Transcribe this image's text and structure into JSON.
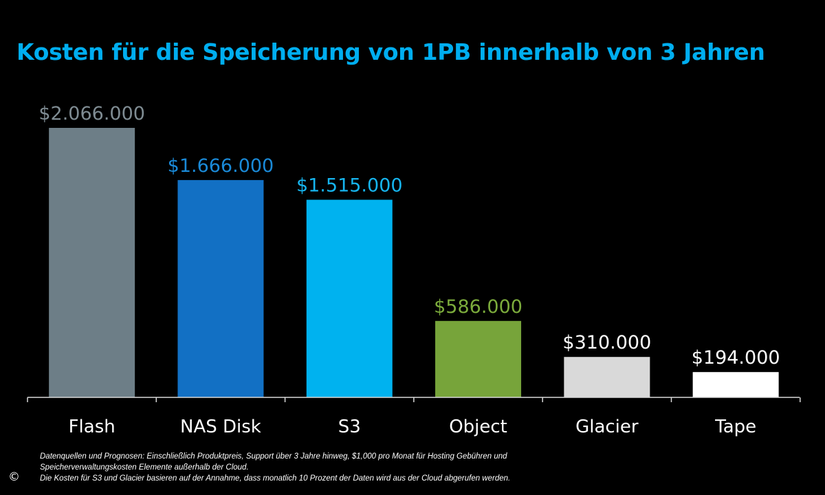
{
  "chart_data": {
    "type": "bar",
    "title": "Kosten für die Speicherung von 1PB innerhalb von 3 Jahren",
    "categories": [
      "Flash",
      "NAS Disk",
      "S3",
      "Object",
      "Glacier",
      "Tape"
    ],
    "values": [
      2066000,
      1666000,
      1515000,
      586000,
      310000,
      194000
    ],
    "value_labels": [
      "$2.066.000",
      "$1.666.000",
      "$1.515.000",
      "$586.000",
      "$310.000",
      "$194.000"
    ],
    "bar_colors": [
      "#6d7e87",
      "#1270c4",
      "#00b2ef",
      "#77a43a",
      "#d9d9d9",
      "#ffffff"
    ],
    "label_colors": [
      "#7f8c93",
      "#1a8ad8",
      "#16b5ef",
      "#7cac3c",
      "#ffffff",
      "#ffffff"
    ],
    "xlabel": "",
    "ylabel": "",
    "ylim": [
      0,
      2066000
    ],
    "grid": false,
    "legend": "none"
  },
  "footnote": {
    "line1": "Datenquellen und Prognosen:    Einschließlich Produktpreis, Support über 3 Jahre hinweg, $1,000 pro Monat für Hosting Gebühren und",
    "line2": "Speicherverwaltungskosten Elemente außerhalb der Cloud.",
    "line3": "Die Kosten für S3 und Glacier basieren auf der Annahme, dass monatlich 10 Prozent der Daten wird  aus der Cloud abgerufen werden."
  },
  "copyright_symbol": "©"
}
